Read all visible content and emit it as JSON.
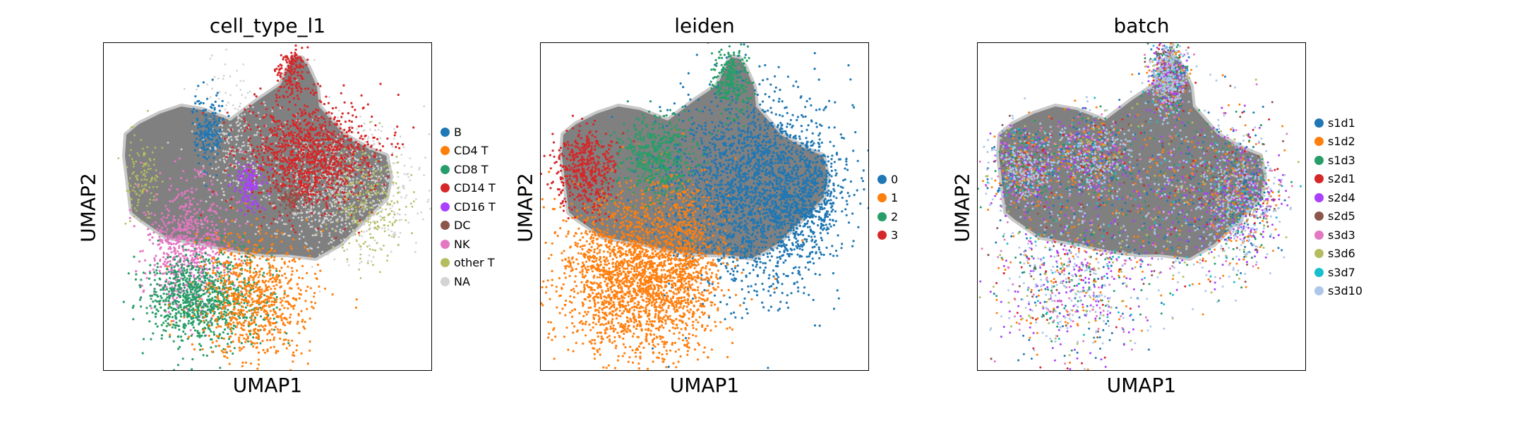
{
  "chart_data": [
    {
      "type": "scatter",
      "title": "cell_type_l1",
      "xlabel": "UMAP1",
      "ylabel": "UMAP2",
      "edges_color": "#808080",
      "legend_position": "right",
      "series": [
        {
          "name": "B",
          "color": "#1f77b4"
        },
        {
          "name": "CD4 T",
          "color": "#ff7f0e"
        },
        {
          "name": "CD8 T",
          "color": "#279e68"
        },
        {
          "name": "CD14 T",
          "color": "#d62728"
        },
        {
          "name": "CD16 T",
          "color": "#aa40fc"
        },
        {
          "name": "DC",
          "color": "#8c564b"
        },
        {
          "name": "NK",
          "color": "#e377c2"
        },
        {
          "name": "other T",
          "color": "#b5bd61"
        },
        {
          "name": "NA",
          "color": "#d3d3d3"
        }
      ]
    },
    {
      "type": "scatter",
      "title": "leiden",
      "xlabel": "UMAP1",
      "ylabel": "UMAP2",
      "edges_color": "#808080",
      "legend_position": "right",
      "series": [
        {
          "name": "0",
          "color": "#1f77b4"
        },
        {
          "name": "1",
          "color": "#ff7f0e"
        },
        {
          "name": "2",
          "color": "#279e68"
        },
        {
          "name": "3",
          "color": "#d62728"
        }
      ]
    },
    {
      "type": "scatter",
      "title": "batch",
      "xlabel": "UMAP1",
      "ylabel": "UMAP2",
      "edges_color": "#808080",
      "legend_position": "right",
      "series": [
        {
          "name": "s1d1",
          "color": "#1f77b4"
        },
        {
          "name": "s1d2",
          "color": "#ff7f0e"
        },
        {
          "name": "s1d3",
          "color": "#279e68"
        },
        {
          "name": "s2d1",
          "color": "#d62728"
        },
        {
          "name": "s2d4",
          "color": "#aa40fc"
        },
        {
          "name": "s2d5",
          "color": "#8c564b"
        },
        {
          "name": "s3d3",
          "color": "#e377c2"
        },
        {
          "name": "s3d6",
          "color": "#b5bd61"
        },
        {
          "name": "s3d7",
          "color": "#17becf"
        },
        {
          "name": "s3d10",
          "color": "#aec7e8"
        }
      ]
    }
  ]
}
